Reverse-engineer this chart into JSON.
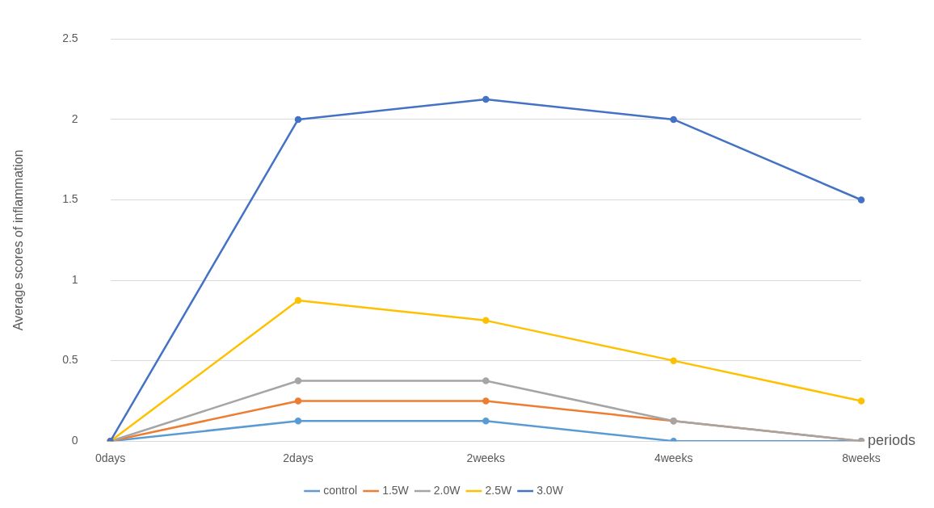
{
  "chart_data": {
    "type": "line",
    "xlabel": "periods",
    "ylabel": "Average scores of inflammation",
    "categories": [
      "0days",
      "2days",
      "2weeks",
      "4weeks",
      "8weeks"
    ],
    "series": [
      {
        "name": "control",
        "color": "#5b9bd5",
        "values": [
          0,
          0.125,
          0.125,
          0,
          0
        ]
      },
      {
        "name": "1.5W",
        "color": "#ed7d31",
        "values": [
          0,
          0.25,
          0.25,
          0.125,
          0
        ]
      },
      {
        "name": "2.0W",
        "color": "#a5a5a5",
        "values": [
          0,
          0.375,
          0.375,
          0.125,
          0
        ]
      },
      {
        "name": "2.5W",
        "color": "#ffc000",
        "values": [
          0,
          0.875,
          0.75,
          0.5,
          0.25
        ]
      },
      {
        "name": "3.0W",
        "color": "#4472c4",
        "values": [
          0,
          2,
          2.125,
          2,
          1.5
        ]
      }
    ],
    "ylim": [
      0,
      2.5
    ],
    "yticks": [
      0,
      0.5,
      1,
      1.5,
      2,
      2.5
    ],
    "grid": "y",
    "legend": "bottom",
    "marker": "circle",
    "line_style": "solid"
  }
}
